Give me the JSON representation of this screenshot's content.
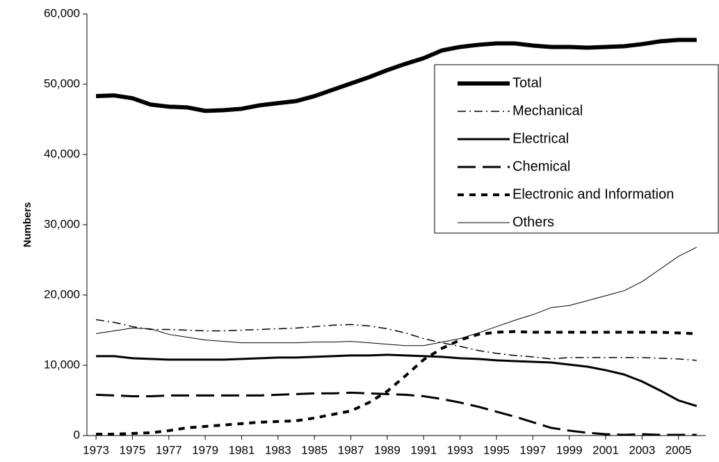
{
  "chart_data": {
    "type": "line",
    "y_label": "Numbers",
    "x": [
      1973,
      1974,
      1975,
      1976,
      1977,
      1978,
      1979,
      1980,
      1981,
      1982,
      1983,
      1984,
      1985,
      1986,
      1987,
      1988,
      1989,
      1990,
      1991,
      1992,
      1993,
      1994,
      1995,
      1996,
      1997,
      1998,
      1999,
      2000,
      2001,
      2002,
      2003,
      2004,
      2005,
      2006
    ],
    "xlim": [
      1972.5,
      2006.5
    ],
    "xticks": [
      1973,
      1975,
      1977,
      1979,
      1981,
      1983,
      1985,
      1987,
      1989,
      1991,
      1993,
      1995,
      1997,
      1999,
      2001,
      2003,
      2005
    ],
    "ylim": [
      0,
      60000
    ],
    "yticks": [
      {
        "value": 0,
        "label": "0"
      },
      {
        "value": 10000,
        "label": "10,000"
      },
      {
        "value": 20000,
        "label": "20,000"
      },
      {
        "value": 30000,
        "label": "30,000"
      },
      {
        "value": 40000,
        "label": "40,000"
      },
      {
        "value": 50000,
        "label": "50,000"
      },
      {
        "value": 60000,
        "label": "60,000"
      }
    ],
    "legend": "upper right",
    "series": [
      {
        "name": "Total",
        "color": "#000000",
        "style": "solid",
        "width": 6,
        "values": [
          48300,
          48400,
          48000,
          47100,
          46800,
          46700,
          46200,
          46300,
          46500,
          47000,
          47300,
          47600,
          48300,
          49200,
          50100,
          51000,
          52000,
          52900,
          53700,
          54800,
          55300,
          55600,
          55800,
          55800,
          55500,
          55300,
          55300,
          55200,
          55300,
          55400,
          55700,
          56100,
          56300,
          56300
        ]
      },
      {
        "name": "Mechanical",
        "color": "#000000",
        "style": "dash-dot",
        "width": 1.5,
        "values": [
          16500,
          16100,
          15500,
          15100,
          15100,
          15000,
          14900,
          14900,
          15000,
          15100,
          15200,
          15300,
          15500,
          15700,
          15800,
          15600,
          15200,
          14600,
          13800,
          13200,
          12700,
          12100,
          11700,
          11400,
          11200,
          10900,
          11100,
          11100,
          11100,
          11100,
          11100,
          11000,
          10900,
          10700
        ]
      },
      {
        "name": "Electrical",
        "color": "#000000",
        "style": "solid",
        "width": 3,
        "values": [
          11300,
          11300,
          11000,
          10900,
          10800,
          10800,
          10800,
          10800,
          10900,
          11000,
          11100,
          11100,
          11200,
          11300,
          11400,
          11400,
          11500,
          11400,
          11300,
          11200,
          11000,
          10900,
          10700,
          10600,
          10500,
          10400,
          10100,
          9800,
          9300,
          8700,
          7700,
          6400,
          5000,
          4200
        ]
      },
      {
        "name": "Chemical",
        "color": "#000000",
        "style": "long-dash",
        "width": 3,
        "values": [
          5800,
          5700,
          5600,
          5600,
          5700,
          5700,
          5700,
          5700,
          5700,
          5700,
          5800,
          5900,
          6000,
          6000,
          6100,
          6000,
          5900,
          5800,
          5600,
          5200,
          4700,
          4100,
          3400,
          2700,
          1900,
          1100,
          700,
          400,
          200,
          100,
          200,
          100,
          100,
          100
        ]
      },
      {
        "name": "Electronic and Information",
        "color": "#000000",
        "style": "dash",
        "width": 4,
        "values": [
          200,
          200,
          300,
          400,
          700,
          1100,
          1300,
          1500,
          1700,
          1900,
          2000,
          2100,
          2500,
          3000,
          3500,
          4700,
          6300,
          8500,
          10800,
          12400,
          13600,
          14400,
          14700,
          14800,
          14700,
          14700,
          14700,
          14700,
          14700,
          14700,
          14700,
          14700,
          14600,
          14500
        ]
      },
      {
        "name": "Others",
        "color": "#000000",
        "style": "solid",
        "width": 1,
        "values": [
          14500,
          14900,
          15300,
          15200,
          14400,
          14000,
          13600,
          13400,
          13200,
          13200,
          13200,
          13200,
          13300,
          13300,
          13400,
          13200,
          13000,
          12800,
          12800,
          13300,
          13800,
          14600,
          15500,
          16400,
          17200,
          18200,
          18500,
          19200,
          19900,
          20600,
          21900,
          23700,
          25500,
          26800
        ]
      }
    ]
  }
}
